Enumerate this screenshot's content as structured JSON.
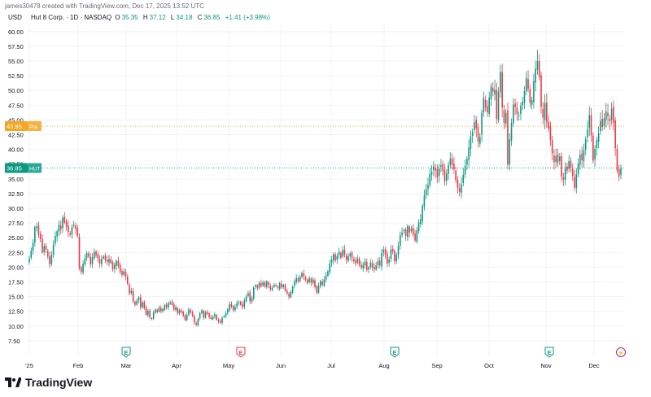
{
  "header": {
    "credit": "james30478 created with TradingView.com, Dec 17, 2025 13:52 UTC",
    "currency": "USD",
    "symbol_line": "Hut 8 Corp. · 1D · NASDAQ",
    "ohlc": [
      {
        "label": "O",
        "value": "35.35"
      },
      {
        "label": "H",
        "value": "37.12"
      },
      {
        "label": "L",
        "value": "34.18"
      },
      {
        "label": "C",
        "value": "36.85"
      }
    ],
    "change": "+1.41 (+3.98%)"
  },
  "footer": {
    "brand": "TradingView",
    "logo_icon": "tradingview-logo-icon"
  },
  "colors": {
    "up": "#089981",
    "down": "#f23645",
    "pre": "#f5a623",
    "grid": "#f0f3fa",
    "axis_text": "#131722"
  },
  "chart_data": {
    "type": "candlestick",
    "title": "Hut 8 Corp. · 1D · NASDAQ",
    "ylabel": "USD",
    "ylim": [
      5.0,
      61.5
    ],
    "y_ticks": [
      "7.50",
      "10.00",
      "12.50",
      "15.00",
      "17.50",
      "20.00",
      "22.50",
      "25.00",
      "27.50",
      "30.00",
      "32.50",
      "35.00",
      "37.50",
      "40.00",
      "42.50",
      "45.00",
      "47.50",
      "50.00",
      "52.50",
      "55.00",
      "57.50",
      "60.00"
    ],
    "x_ticks": [
      "'25",
      "Feb",
      "Mar",
      "Apr",
      "May",
      "Jun",
      "Jul",
      "Aug",
      "Sep",
      "Oct",
      "Nov",
      "Dec"
    ],
    "price_labels": [
      {
        "text": "43.95",
        "tag": "Pre",
        "value": 43.95,
        "color": "#f5a623"
      },
      {
        "text": "36.85",
        "tag": "HUT",
        "value": 36.85,
        "color": "#089981"
      }
    ],
    "event_markers": [
      {
        "month_index": 2,
        "label": "E",
        "kind": "earnings-up"
      },
      {
        "month_index": 4,
        "label": "E",
        "kind": "earnings-down"
      },
      {
        "month_index": 7,
        "label": "E",
        "kind": "earnings-up"
      },
      {
        "month_index": 10,
        "label": "E",
        "kind": "earnings-up"
      },
      {
        "month_index": 11.5,
        "label": "⚡",
        "kind": "dividend"
      }
    ],
    "closes": [
      21.5,
      22.8,
      24.2,
      26.8,
      26.9,
      25.5,
      24.8,
      22.5,
      23.6,
      23.0,
      21.8,
      20.5,
      22.1,
      23.8,
      25.3,
      26.1,
      27.2,
      26.4,
      28.4,
      27.6,
      26.9,
      26.0,
      25.5,
      26.8,
      27.2,
      26.5,
      25.3,
      19.8,
      19.2,
      20.6,
      21.5,
      22.4,
      21.8,
      20.5,
      21.7,
      22.6,
      22.0,
      21.5,
      20.6,
      21.4,
      21.8,
      21.2,
      20.9,
      21.4,
      20.7,
      19.6,
      20.4,
      21.1,
      20.2,
      19.2,
      18.7,
      19.3,
      18.4,
      17.2,
      15.5,
      16.0,
      14.2,
      13.6,
      14.3,
      14.9,
      13.2,
      14.0,
      13.1,
      11.9,
      12.6,
      11.5,
      11.2,
      12.3,
      12.8,
      12.4,
      13.1,
      12.5,
      12.9,
      13.6,
      13.2,
      13.9,
      14.0,
      13.6,
      12.8,
      13.2,
      12.2,
      12.7,
      12.4,
      11.8,
      11.0,
      11.9,
      12.8,
      12.3,
      11.7,
      10.6,
      10.2,
      11.2,
      12.2,
      12.6,
      11.4,
      12.4,
      12.1,
      11.5,
      11.2,
      11.6,
      12.0,
      11.1,
      10.8,
      10.6,
      11.4,
      11.6,
      12.2,
      12.8,
      13.7,
      13.3,
      12.7,
      13.3,
      13.9,
      14.1,
      13.6,
      13.2,
      14.4,
      15.0,
      15.6,
      14.2,
      14.8,
      16.5,
      16.9,
      16.5,
      17.3,
      16.8,
      17.4,
      16.7,
      17.6,
      17.0,
      16.2,
      16.5,
      17.0,
      16.8,
      16.5,
      17.3,
      16.6,
      17.0,
      16.0,
      15.5,
      15.0,
      15.8,
      16.7,
      17.6,
      18.2,
      17.6,
      18.4,
      19.0,
      18.4,
      17.9,
      17.3,
      18.1,
      17.4,
      17.9,
      16.6,
      15.7,
      16.9,
      17.6,
      17.0,
      17.9,
      18.6,
      19.3,
      20.6,
      21.3,
      22.2,
      21.1,
      21.9,
      22.6,
      21.6,
      22.9,
      22.1,
      21.2,
      21.9,
      22.3,
      21.6,
      21.0,
      20.6,
      21.5,
      20.4,
      19.9,
      20.4,
      21.0,
      19.5,
      20.0,
      20.8,
      19.9,
      19.6,
      20.3,
      21.0,
      20.3,
      22.4,
      23.0,
      22.1,
      20.6,
      21.3,
      23.0,
      22.6,
      21.0,
      22.1,
      23.6,
      25.4,
      25.9,
      26.3,
      25.3,
      27.0,
      25.9,
      26.6,
      25.5,
      24.5,
      26.3,
      27.6,
      28.1,
      30.4,
      32.2,
      33.2,
      34.0,
      35.8,
      36.2,
      37.1,
      36.4,
      35.3,
      36.7,
      37.3,
      36.3,
      34.6,
      35.9,
      37.3,
      38.4,
      37.4,
      36.6,
      34.8,
      33.5,
      32.8,
      34.1,
      35.7,
      37.2,
      38.4,
      40.3,
      42.2,
      42.9,
      44.6,
      43.6,
      41.3,
      42.1,
      46.2,
      48.7,
      47.1,
      46.3,
      48.8,
      50.7,
      49.8,
      50.1,
      45.2,
      49.8,
      53.2,
      47.1,
      44.5,
      46.2,
      37.4,
      41.7,
      44.5,
      47.6,
      47.2,
      46.0,
      45.8,
      47.4,
      48.1,
      49.9,
      52.1,
      50.3,
      47.9,
      48.4,
      51.6,
      53.7,
      55.0,
      52.3,
      47.2,
      45.4,
      47.9,
      44.6,
      43.5,
      41.6,
      39.3,
      37.8,
      38.9,
      37.7,
      38.8,
      35.4,
      34.9,
      37.0,
      36.4,
      38.0,
      36.9,
      35.5,
      33.5,
      35.8,
      37.6,
      39.1,
      38.2,
      39.9,
      41.7,
      43.4,
      45.8,
      42.4,
      38.1,
      40.1,
      41.6,
      42.7,
      44.8,
      43.8,
      45.3,
      46.5,
      45.6,
      44.8,
      46.9,
      44.5,
      40.2,
      36.4,
      35.4,
      36.85
    ]
  }
}
